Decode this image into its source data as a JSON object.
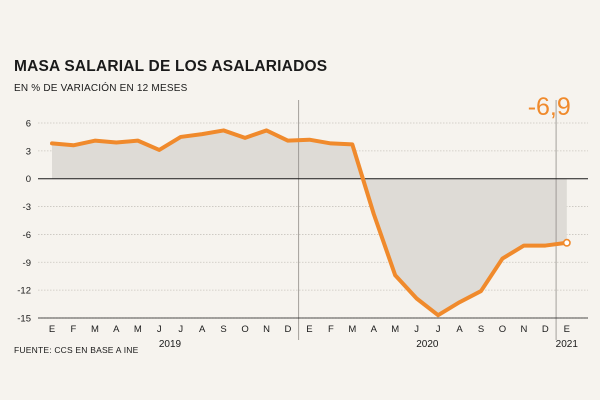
{
  "chart_data": {
    "type": "area",
    "title": "MASA SALARIAL DE LOS ASALARIADOS",
    "subtitle": "EN % DE VARIACIÓN EN 12 MESES",
    "source": "FUENTE: CCS EN BASE A INE",
    "ylim": [
      -15,
      6
    ],
    "yticks": [
      6,
      3,
      0,
      -3,
      -6,
      -9,
      -12,
      -15
    ],
    "ytick_labels": [
      "6",
      "3",
      "0",
      "-3",
      "-6",
      "-9",
      "-12",
      "-15"
    ],
    "x": [
      "E",
      "F",
      "M",
      "A",
      "M",
      "J",
      "J",
      "A",
      "S",
      "O",
      "N",
      "D",
      "E",
      "F",
      "M",
      "A",
      "M",
      "J",
      "J",
      "A",
      "S",
      "O",
      "N",
      "D",
      "E"
    ],
    "years": [
      {
        "label": "2019",
        "center_index": 5.5
      },
      {
        "label": "2020",
        "center_index": 17.5
      },
      {
        "label": "2021",
        "center_index": 24
      }
    ],
    "year_dividers": [
      11.5,
      23.5
    ],
    "series": [
      {
        "name": "Masa salarial",
        "color": "#f08a2c",
        "fill": "#dedbd6",
        "values": [
          3.8,
          3.6,
          4.1,
          3.9,
          4.1,
          3.1,
          4.5,
          4.8,
          5.2,
          4.4,
          5.2,
          4.1,
          4.2,
          3.8,
          3.7,
          -3.8,
          -10.4,
          -12.9,
          -14.7,
          -13.3,
          -12.1,
          -8.6,
          -7.2,
          -7.2,
          -6.9
        ]
      }
    ],
    "annotation": {
      "label": "-6,9",
      "index": 24,
      "value": -6.9,
      "color": "#f08a2c"
    }
  }
}
